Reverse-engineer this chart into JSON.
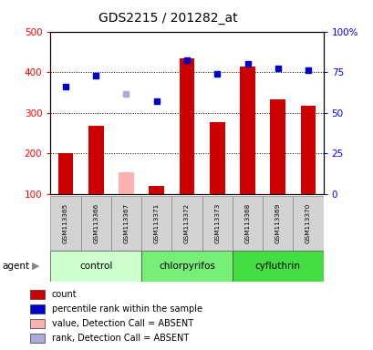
{
  "title": "GDS2215 / 201282_at",
  "samples": [
    "GSM113365",
    "GSM113366",
    "GSM113367",
    "GSM113371",
    "GSM113372",
    "GSM113373",
    "GSM113368",
    "GSM113369",
    "GSM113370"
  ],
  "groups": [
    {
      "name": "control",
      "color": "#ccffcc",
      "size": 3
    },
    {
      "name": "chlorpyrifos",
      "color": "#77ee77",
      "size": 3
    },
    {
      "name": "cyfluthrin",
      "color": "#44dd44",
      "size": 3
    }
  ],
  "bar_values": [
    201,
    268,
    null,
    120,
    435,
    278,
    415,
    333,
    317
  ],
  "bar_absent": [
    null,
    null,
    155,
    null,
    null,
    null,
    null,
    null,
    null
  ],
  "dot_values": [
    365,
    392,
    null,
    328,
    430,
    395,
    420,
    410,
    405
  ],
  "dot_absent": [
    null,
    null,
    347,
    null,
    null,
    null,
    null,
    null,
    null
  ],
  "bar_color": "#cc0000",
  "bar_absent_color": "#ffb0b0",
  "dot_color": "#0000cc",
  "dot_absent_color": "#aaaadd",
  "ylim_left": [
    100,
    500
  ],
  "ylim_right": [
    0,
    100
  ],
  "yticks_left": [
    100,
    200,
    300,
    400,
    500
  ],
  "yticks_right": [
    0,
    25,
    50,
    75,
    100
  ],
  "ytick_labels_right": [
    "0",
    "25",
    "50",
    "75",
    "100%"
  ],
  "legend_items": [
    {
      "color": "#cc0000",
      "label": "count"
    },
    {
      "color": "#0000cc",
      "label": "percentile rank within the sample"
    },
    {
      "color": "#ffb0b0",
      "label": "value, Detection Call = ABSENT"
    },
    {
      "color": "#aaaadd",
      "label": "rank, Detection Call = ABSENT"
    }
  ]
}
